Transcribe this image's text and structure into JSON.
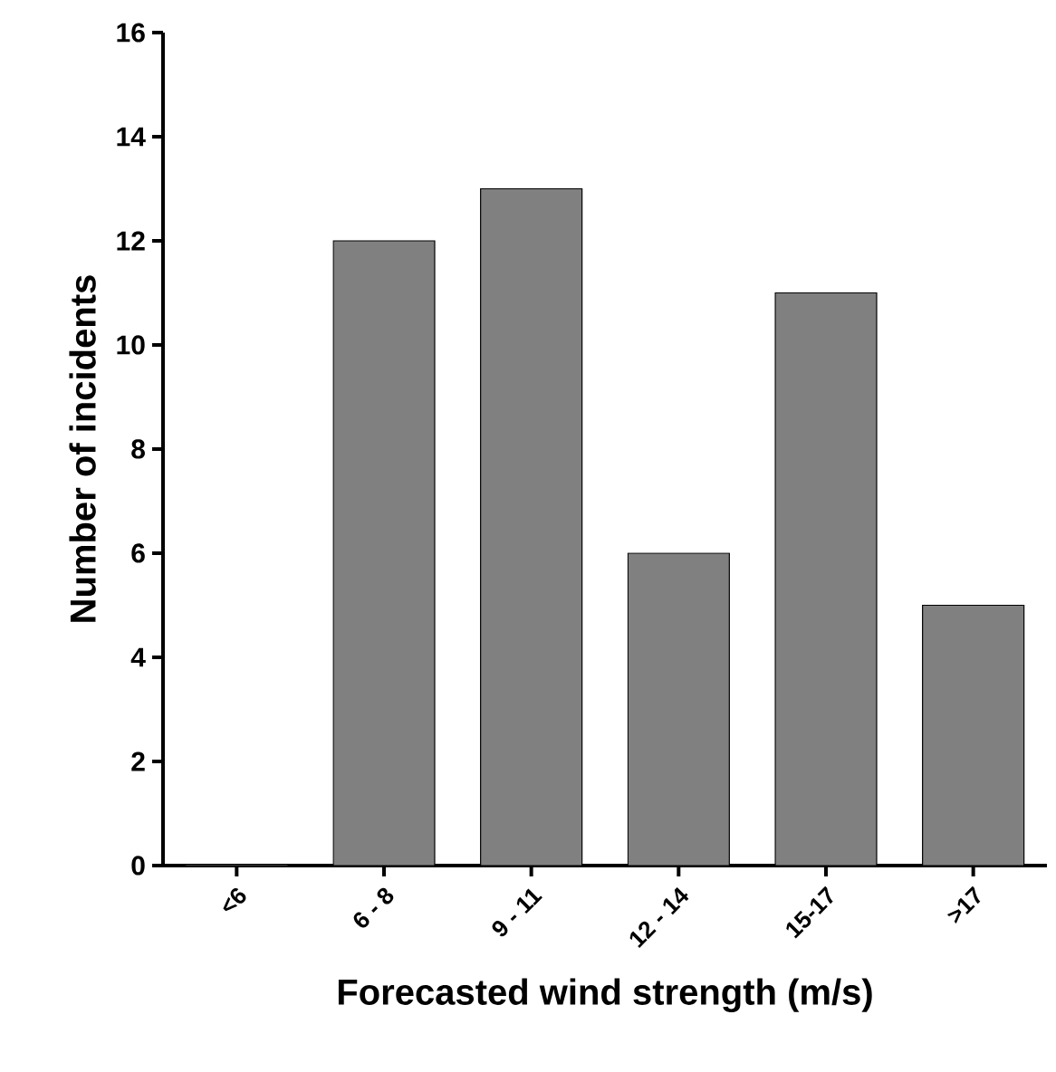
{
  "chart_data": {
    "type": "bar",
    "xlabel": "Forecasted wind strength (m/s)",
    "ylabel": "Number of incidents",
    "categories": [
      "<6",
      "6 - 8",
      "9 - 11",
      "12 - 14",
      "15-17",
      ">17"
    ],
    "values": [
      0,
      12,
      13,
      6,
      11,
      5
    ],
    "color": "#808080",
    "ylim": [
      0,
      16
    ],
    "yticks": [
      0,
      2,
      4,
      6,
      8,
      10,
      12,
      14,
      16
    ]
  }
}
